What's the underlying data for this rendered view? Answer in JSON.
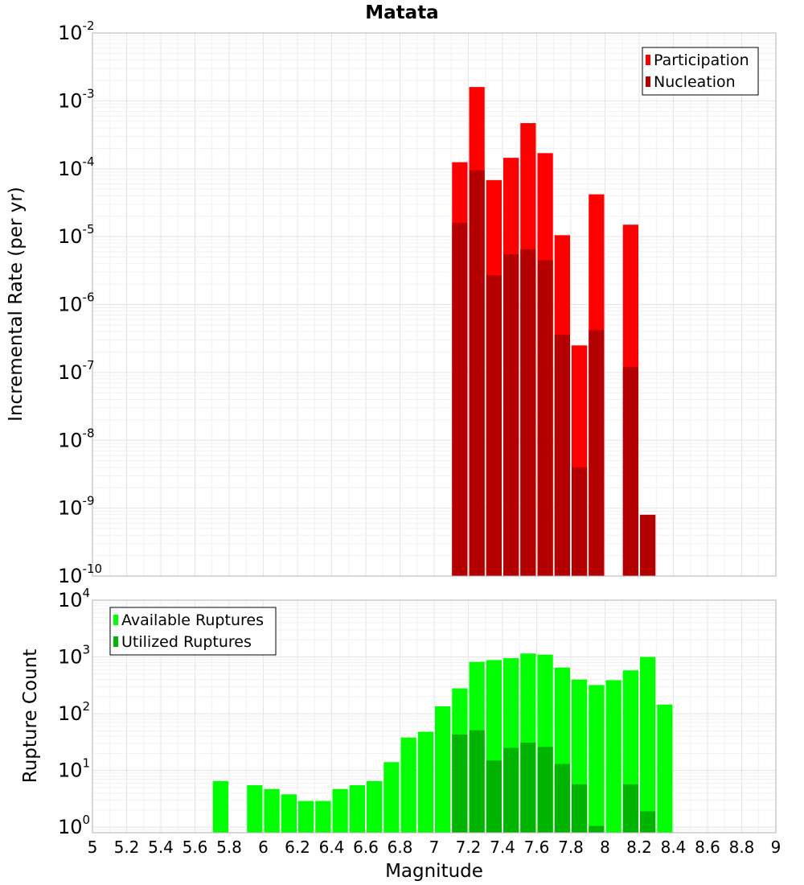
{
  "chart_data": [
    {
      "type": "bar",
      "title": "Matata",
      "xlabel": "",
      "ylabel": "Incremental Rate (per yr)",
      "yscale": "log",
      "ylim": [
        1e-10,
        0.01
      ],
      "xlim": [
        5,
        9
      ],
      "bin_width": 0.1,
      "grid": true,
      "legend_position": "top-right",
      "series": [
        {
          "name": "Participation",
          "color": "#ff0000",
          "x": [
            7.15,
            7.25,
            7.35,
            7.45,
            7.55,
            7.65,
            7.75,
            7.85,
            7.95,
            8.15
          ],
          "values": [
            0.000125,
            0.0016,
            6.8e-05,
            0.000145,
            0.00047,
            0.00017,
            1.05e-05,
            2.5e-07,
            4.2e-05,
            1.5e-05
          ]
        },
        {
          "name": "Nucleation",
          "color": "#b40000",
          "x": [
            7.15,
            7.25,
            7.35,
            7.45,
            7.55,
            7.65,
            7.75,
            7.85,
            7.95,
            8.15,
            8.25
          ],
          "values": [
            1.6e-05,
            9.5e-05,
            2.7e-06,
            5.5e-06,
            6.5e-06,
            4.5e-06,
            3.6e-07,
            4e-09,
            4.2e-07,
            1.2e-07,
            8e-10
          ]
        }
      ]
    },
    {
      "type": "bar",
      "title": "",
      "xlabel": "Magnitude",
      "ylabel": "Rupture Count",
      "yscale": "log",
      "ylim": [
        0.8,
        10000
      ],
      "xlim": [
        5,
        9
      ],
      "bin_width": 0.1,
      "grid": true,
      "legend_position": "top-left",
      "xticks": [
        "5",
        "5.2",
        "5.4",
        "5.6",
        "5.8",
        "6",
        "6.2",
        "6.4",
        "6.6",
        "6.8",
        "7",
        "7.2",
        "7.4",
        "7.6",
        "7.8",
        "8",
        "8.2",
        "8.4",
        "8.6",
        "8.8",
        "9"
      ],
      "series": [
        {
          "name": "Available Ruptures",
          "color": "#00ff00",
          "x": [
            5.75,
            5.95,
            6.05,
            6.15,
            6.25,
            6.35,
            6.45,
            6.55,
            6.65,
            6.75,
            6.85,
            6.95,
            7.05,
            7.15,
            7.25,
            7.35,
            7.45,
            7.55,
            7.65,
            7.75,
            7.85,
            7.95,
            8.05,
            8.15,
            8.25,
            8.35
          ],
          "values": [
            6.5,
            5.5,
            4.7,
            3.8,
            2.9,
            2.9,
            4.7,
            5.5,
            6.5,
            14,
            38,
            48,
            135,
            280,
            820,
            880,
            950,
            1150,
            1100,
            650,
            400,
            320,
            390,
            580,
            1000,
            145
          ]
        },
        {
          "name": "Utilized Ruptures",
          "color": "#00b400",
          "x": [
            7.15,
            7.25,
            7.35,
            7.45,
            7.55,
            7.65,
            7.75,
            7.85,
            7.95,
            8.15,
            8.25
          ],
          "values": [
            43,
            51,
            15,
            25,
            31,
            26,
            13,
            5.7,
            1.05,
            5.7,
            1.9
          ]
        }
      ]
    }
  ]
}
